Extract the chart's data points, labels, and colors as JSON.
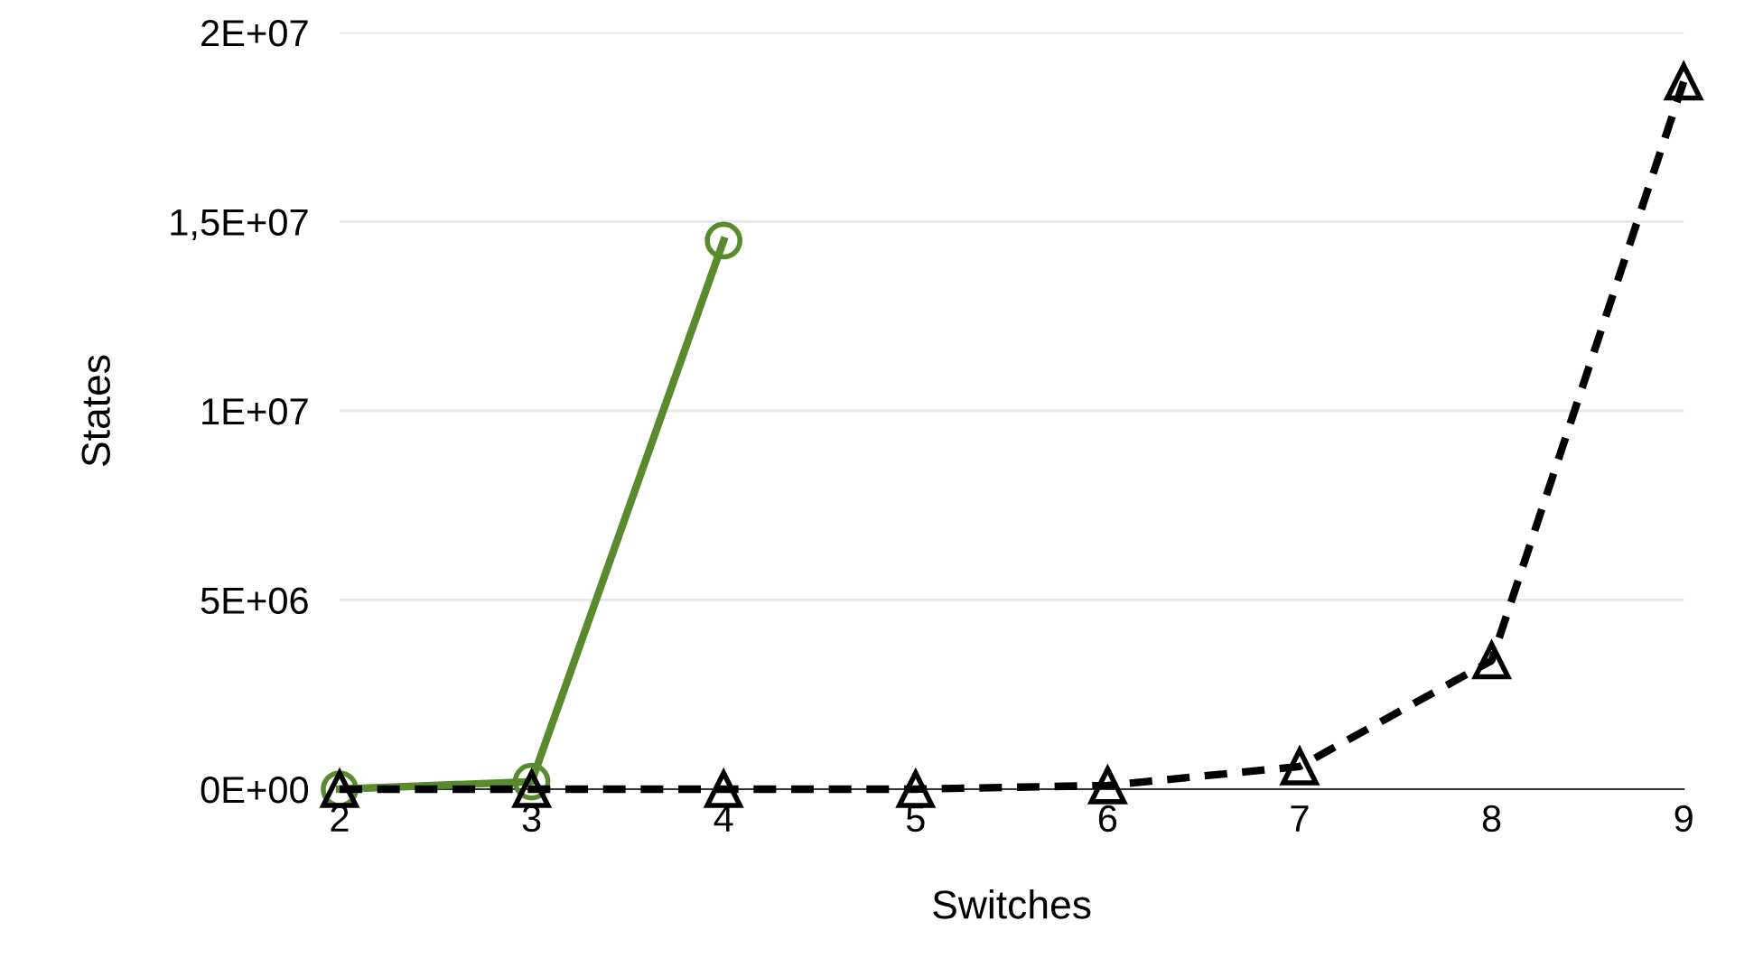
{
  "chart_data": {
    "type": "line",
    "xlabel": "Switches",
    "ylabel": "States",
    "xlim": [
      2,
      9
    ],
    "xticks": [
      2,
      3,
      4,
      5,
      6,
      7,
      8,
      9
    ],
    "ylim": [
      0,
      20000000
    ],
    "yticks": [
      {
        "value": 0,
        "label": "0E+00"
      },
      {
        "value": 5000000,
        "label": "5E+06"
      },
      {
        "value": 10000000,
        "label": "1E+07"
      },
      {
        "value": 15000000,
        "label": "1,5E+07"
      },
      {
        "value": 20000000,
        "label": "2E+07"
      }
    ],
    "grid": "y",
    "legend": false,
    "series": [
      {
        "color": "#5a8a2e",
        "marker": "circle",
        "line_style": "solid",
        "x": [
          2,
          3,
          4
        ],
        "values": [
          0,
          200000,
          14500000
        ]
      },
      {
        "color": "#000000",
        "marker": "triangle",
        "line_style": "dashed",
        "x": [
          2,
          3,
          4,
          5,
          6,
          7,
          8,
          9
        ],
        "values": [
          0,
          0,
          0,
          0,
          100000,
          600000,
          3400000,
          18700000
        ]
      }
    ]
  }
}
